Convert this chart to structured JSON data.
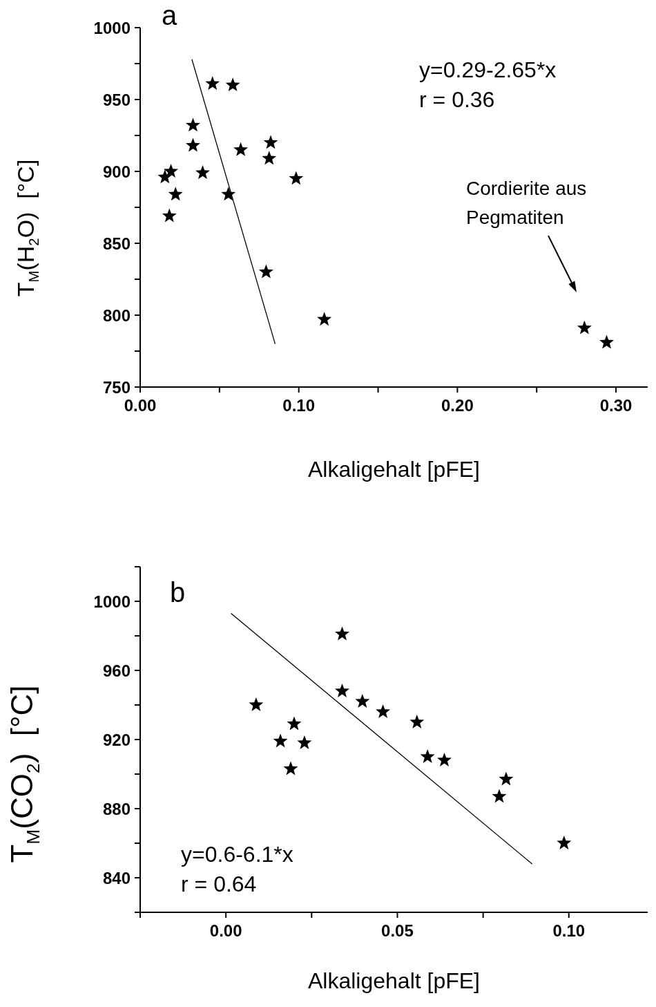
{
  "chart_data": [
    {
      "type": "scatter",
      "title": "a",
      "xlabel": "Alkaligehalt [pFE]",
      "ylabel": "T$_{M}$(H$_{2}$O)  [°C]",
      "marker": "star",
      "annotations": [
        "y=0.29-2.65*x",
        "r = 0.36",
        "Cordierite aus\nPegmatiten"
      ],
      "xlim": [
        0,
        0.32
      ],
      "ylim": [
        750,
        1000
      ],
      "xticks": [
        {
          "value": 0,
          "label": "0.00"
        },
        {
          "value": 0.05,
          "label": null
        },
        {
          "value": 0.1,
          "label": "0.10"
        },
        {
          "value": 0.15,
          "label": null
        },
        {
          "value": 0.2,
          "label": "0.20"
        },
        {
          "value": 0.25,
          "label": null
        },
        {
          "value": 0.3,
          "label": "0.30"
        }
      ],
      "yticks": [
        750,
        {
          "value": 775,
          "label": null
        },
        800,
        {
          "value": 825,
          "label": null
        },
        850,
        {
          "value": 875,
          "label": null
        },
        900,
        {
          "value": 925,
          "label": null
        },
        950,
        {
          "value": 975,
          "label": null
        },
        1000
      ],
      "series": [
        {
          "color": "#000000",
          "x": [
            0.0156,
            0.0194,
            0.0223,
            0.0184,
            0.0333,
            0.0333,
            0.0394,
            0.0456,
            0.0584,
            0.0634,
            0.0556,
            0.0823,
            0.0813,
            0.0983,
            0.0794,
            0.1161,
            0.2801,
            0.2941
          ],
          "values": [
            896,
            900,
            884,
            869,
            932,
            918,
            899,
            961,
            960,
            915,
            884,
            920,
            909,
            895,
            830,
            797,
            791,
            781
          ]
        },
        {
          "type": "line",
          "marker": "none",
          "color": "#000000",
          "x": [
            0.0326,
            0.0851
          ],
          "values": [
            978,
            780
          ]
        }
      ]
    },
    {
      "type": "scatter",
      "title": "b",
      "xlabel": "Alkaligehalt [pFE]",
      "ylabel": "T$_{M}$(CO$_{2}$)  [°C]",
      "marker": "star",
      "annotations": [
        "y=0.6-6.1*x",
        "r = 0.64"
      ],
      "xlim": [
        -0.025,
        0.123
      ],
      "ylim": [
        820,
        1020
      ],
      "xticks": [
        {
          "value": -0.025,
          "label": null
        },
        {
          "value": 0,
          "label": "0.00"
        },
        {
          "value": 0.025,
          "label": null
        },
        {
          "value": 0.05,
          "label": "0.05"
        },
        {
          "value": 0.075,
          "label": null
        },
        {
          "value": 0.1,
          "label": "0.10"
        }
      ],
      "yticks": [
        {
          "value": 820,
          "label": null
        },
        840,
        {
          "value": 860,
          "label": null
        },
        880,
        {
          "value": 900,
          "label": null
        },
        920,
        {
          "value": 940,
          "label": null
        },
        960,
        {
          "value": 980,
          "label": null
        },
        1000,
        {
          "value": 1020,
          "label": null
        }
      ],
      "series": [
        {
          "color": "#000000",
          "x": [
            0.0088,
            0.0199,
            0.0159,
            0.0229,
            0.0189,
            0.0339,
            0.0339,
            0.0398,
            0.0458,
            0.0557,
            0.0588,
            0.0637,
            0.0817,
            0.0797,
            0.0986
          ],
          "values": [
            940,
            929,
            919,
            918,
            903,
            981,
            948,
            942,
            936,
            930,
            910,
            908,
            897,
            887,
            860
          ]
        },
        {
          "type": "line",
          "marker": "none",
          "color": "#000000",
          "x": [
            0.0015,
            0.0893
          ],
          "values": [
            993,
            848
          ]
        }
      ]
    }
  ]
}
